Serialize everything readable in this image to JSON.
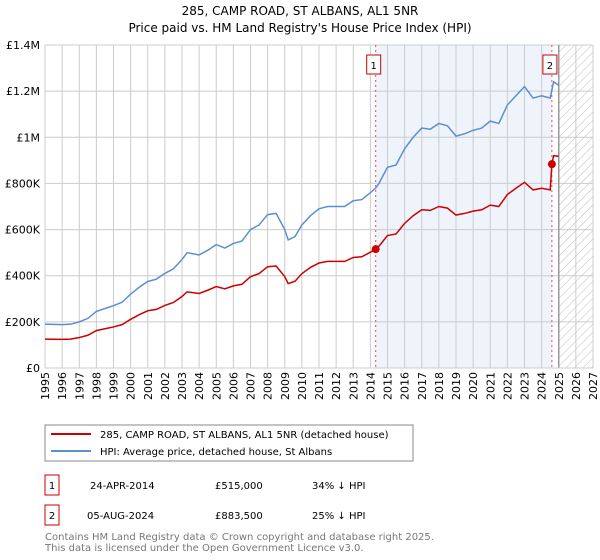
{
  "chart_data": {
    "type": "line",
    "title": "285, CAMP ROAD, ST ALBANS, AL1 5NR",
    "subtitle": "Price paid vs. HM Land Registry's House Price Index (HPI)",
    "xlim": [
      1995,
      2027
    ],
    "ylim": [
      0,
      1400000
    ],
    "yticks": [
      {
        "v": 0,
        "label": "£0"
      },
      {
        "v": 200000,
        "label": "£200K"
      },
      {
        "v": 400000,
        "label": "£400K"
      },
      {
        "v": 600000,
        "label": "£600K"
      },
      {
        "v": 800000,
        "label": "£800K"
      },
      {
        "v": 1000000,
        "label": "£1M"
      },
      {
        "v": 1200000,
        "label": "£1.2M"
      },
      {
        "v": 1400000,
        "label": "£1.4M"
      }
    ],
    "xticks": [
      "1995",
      "1996",
      "1997",
      "1998",
      "1999",
      "2000",
      "2001",
      "2002",
      "2003",
      "2004",
      "2005",
      "2006",
      "2007",
      "2008",
      "2009",
      "2010",
      "2011",
      "2012",
      "2013",
      "2014",
      "2015",
      "2016",
      "2017",
      "2018",
      "2019",
      "2020",
      "2021",
      "2022",
      "2023",
      "2024",
      "2025",
      "2026",
      "2027"
    ],
    "grid": true,
    "shaded_range": [
      2014.31,
      2024.6
    ],
    "forecast_hatch_from": 2025.0,
    "series": [
      {
        "name": "285, CAMP ROAD, ST ALBANS, AL1 5NR (detached house)",
        "color": "#cc0000",
        "x": [
          1995,
          1996,
          1996.5,
          1997,
          1997.5,
          1998,
          1998.5,
          1999,
          1999.5,
          2000,
          2000.5,
          2001,
          2001.5,
          2002,
          2002.5,
          2003,
          2003.3,
          2004,
          2004.5,
          2005,
          2005.5,
          2006,
          2006.5,
          2007,
          2007.5,
          2008,
          2008.5,
          2009,
          2009.2,
          2009.6,
          2010,
          2010.5,
          2011,
          2011.5,
          2012,
          2012.5,
          2013,
          2013.5,
          2014,
          2014.31,
          2014.5,
          2015,
          2015.5,
          2016,
          2016.5,
          2017,
          2017.5,
          2018,
          2018.5,
          2019,
          2019.5,
          2020,
          2020.5,
          2021,
          2021.5,
          2022,
          2022.5,
          2023,
          2023.5,
          2024,
          2024.5,
          2024.6,
          2024.7,
          2025
        ],
        "y": [
          125000,
          124000,
          125000,
          132000,
          142000,
          162000,
          170000,
          178000,
          188000,
          211000,
          231000,
          248000,
          254000,
          271000,
          284000,
          310000,
          330000,
          323000,
          337000,
          353000,
          343000,
          356000,
          363000,
          396000,
          409000,
          439000,
          442000,
          396000,
          366000,
          376000,
          409000,
          436000,
          455000,
          462000,
          462000,
          462000,
          479000,
          482000,
          502000,
          515000,
          528000,
          574000,
          581000,
          627000,
          660000,
          686000,
          683000,
          700000,
          693000,
          663000,
          670000,
          680000,
          686000,
          706000,
          700000,
          752000,
          779000,
          805000,
          772000,
          779000,
          772000,
          883500,
          920000,
          918000
        ]
      },
      {
        "name": "HPI: Average price, detached house, St Albans",
        "color": "#5b8fd0",
        "x": [
          1995,
          1996,
          1996.5,
          1997,
          1997.5,
          1998,
          1998.5,
          1999,
          1999.5,
          2000,
          2000.5,
          2001,
          2001.5,
          2002,
          2002.5,
          2003,
          2003.3,
          2004,
          2004.5,
          2005,
          2005.5,
          2006,
          2006.5,
          2007,
          2007.5,
          2008,
          2008.5,
          2009,
          2009.2,
          2009.6,
          2010,
          2010.5,
          2011,
          2011.5,
          2012,
          2012.5,
          2013,
          2013.5,
          2014,
          2014.31,
          2014.5,
          2015,
          2015.5,
          2016,
          2016.5,
          2017,
          2017.5,
          2018,
          2018.5,
          2019,
          2019.5,
          2020,
          2020.5,
          2021,
          2021.5,
          2022,
          2022.5,
          2023,
          2023.5,
          2024,
          2024.5,
          2024.7,
          2025
        ],
        "y": [
          190000,
          188000,
          190000,
          200000,
          215000,
          245000,
          258000,
          270000,
          285000,
          320000,
          350000,
          375000,
          385000,
          410000,
          430000,
          470000,
          500000,
          490000,
          510000,
          535000,
          520000,
          540000,
          550000,
          600000,
          620000,
          665000,
          670000,
          600000,
          555000,
          570000,
          620000,
          660000,
          690000,
          700000,
          700000,
          700000,
          725000,
          730000,
          760000,
          780000,
          800000,
          870000,
          880000,
          950000,
          1000000,
          1040000,
          1035000,
          1060000,
          1050000,
          1005000,
          1015000,
          1030000,
          1040000,
          1070000,
          1060000,
          1140000,
          1180000,
          1220000,
          1170000,
          1180000,
          1170000,
          1240000,
          1225000
        ]
      }
    ],
    "sales": [
      {
        "id": "1",
        "x": 2014.31,
        "y": 515000,
        "date": "24-APR-2014",
        "price": "£515,000",
        "hpi": "34% ↓ HPI"
      },
      {
        "id": "2",
        "x": 2024.6,
        "y": 883500,
        "date": "05-AUG-2024",
        "price": "£883,500",
        "hpi": "25% ↓ HPI"
      }
    ],
    "footer": [
      "Contains HM Land Registry data © Crown copyright and database right 2025.",
      "This data is licensed under the Open Government Licence v3.0."
    ]
  }
}
